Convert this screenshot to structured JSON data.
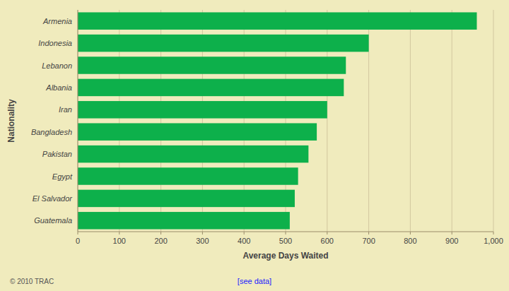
{
  "chart_data": {
    "type": "bar",
    "orientation": "horizontal",
    "categories": [
      "Armenia",
      "Indonesia",
      "Lebanon",
      "Albania",
      "Iran",
      "Bangladesh",
      "Pakistan",
      "Egypt",
      "El Salvador",
      "Guatemala"
    ],
    "values": [
      960,
      700,
      645,
      640,
      600,
      575,
      555,
      530,
      522,
      510
    ],
    "color": "#0db04b",
    "xlabel": "Average Days Waited",
    "ylabel": "Nationality",
    "xlim": [
      0,
      1000
    ],
    "xticks": [
      0,
      100,
      200,
      300,
      400,
      500,
      600,
      700,
      800,
      900,
      {
        "value": 1000,
        "label": "1,000"
      }
    ],
    "grid": true,
    "annotations": [
      "© 2010 TRAC",
      "[see data]"
    ]
  }
}
